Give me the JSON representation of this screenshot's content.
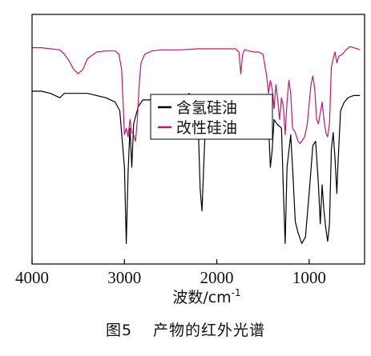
{
  "chart_data": {
    "type": "line",
    "xlabel": "波数/cm",
    "xlabel_sup": "-1",
    "xlim": [
      4000,
      400
    ],
    "xticks": [
      4000,
      3000,
      2000,
      1000
    ],
    "ylabel": "",
    "grid": false,
    "legend_placement": "center",
    "series": [
      {
        "name": "含氢硅油",
        "color": "#000000",
        "points": [
          [
            4000,
            0.75
          ],
          [
            3900,
            0.75
          ],
          [
            3800,
            0.74
          ],
          [
            3700,
            0.72
          ],
          [
            3650,
            0.74
          ],
          [
            3550,
            0.74
          ],
          [
            3400,
            0.74
          ],
          [
            3200,
            0.72
          ],
          [
            3100,
            0.7
          ],
          [
            3050,
            0.66
          ],
          [
            3000,
            0.4
          ],
          [
            2980,
            0.05
          ],
          [
            2960,
            0.38
          ],
          [
            2940,
            0.58
          ],
          [
            2920,
            0.4
          ],
          [
            2900,
            0.6
          ],
          [
            2850,
            0.68
          ],
          [
            2800,
            0.71
          ],
          [
            2700,
            0.71
          ],
          [
            2600,
            0.7
          ],
          [
            2500,
            0.72
          ],
          [
            2400,
            0.73
          ],
          [
            2350,
            0.7
          ],
          [
            2300,
            0.74
          ],
          [
            2250,
            0.7
          ],
          [
            2200,
            0.58
          ],
          [
            2180,
            0.3
          ],
          [
            2160,
            0.2
          ],
          [
            2140,
            0.42
          ],
          [
            2120,
            0.64
          ],
          [
            2100,
            0.7
          ],
          [
            2000,
            0.72
          ],
          [
            1900,
            0.73
          ],
          [
            1800,
            0.72
          ],
          [
            1700,
            0.72
          ],
          [
            1600,
            0.71
          ],
          [
            1500,
            0.71
          ],
          [
            1450,
            0.7
          ],
          [
            1420,
            0.4
          ],
          [
            1400,
            0.48
          ],
          [
            1380,
            0.62
          ],
          [
            1350,
            0.6
          ],
          [
            1300,
            0.58
          ],
          [
            1280,
            0.3
          ],
          [
            1260,
            0.05
          ],
          [
            1240,
            0.4
          ],
          [
            1200,
            0.55
          ],
          [
            1180,
            0.4
          ],
          [
            1150,
            0.15
          ],
          [
            1120,
            0.1
          ],
          [
            1080,
            0.05
          ],
          [
            1040,
            0.08
          ],
          [
            1000,
            0.28
          ],
          [
            960,
            0.5
          ],
          [
            930,
            0.52
          ],
          [
            900,
            0.32
          ],
          [
            880,
            0.14
          ],
          [
            860,
            0.32
          ],
          [
            840,
            0.2
          ],
          [
            820,
            0.12
          ],
          [
            800,
            0.06
          ],
          [
            780,
            0.14
          ],
          [
            760,
            0.48
          ],
          [
            740,
            0.56
          ],
          [
            720,
            0.44
          ],
          [
            700,
            0.28
          ],
          [
            690,
            0.4
          ],
          [
            660,
            0.66
          ],
          [
            620,
            0.7
          ],
          [
            580,
            0.72
          ],
          [
            520,
            0.73
          ],
          [
            450,
            0.73
          ]
        ]
      },
      {
        "name": "改性硅油",
        "color": "#c41474",
        "points": [
          [
            4000,
            0.95
          ],
          [
            3900,
            0.95
          ],
          [
            3800,
            0.945
          ],
          [
            3700,
            0.94
          ],
          [
            3650,
            0.92
          ],
          [
            3600,
            0.89
          ],
          [
            3550,
            0.85
          ],
          [
            3500,
            0.83
          ],
          [
            3450,
            0.85
          ],
          [
            3400,
            0.9
          ],
          [
            3300,
            0.93
          ],
          [
            3200,
            0.935
          ],
          [
            3100,
            0.935
          ],
          [
            3060,
            0.92
          ],
          [
            3030,
            0.85
          ],
          [
            3000,
            0.55
          ],
          [
            2980,
            0.58
          ],
          [
            2960,
            0.54
          ],
          [
            2940,
            0.62
          ],
          [
            2920,
            0.56
          ],
          [
            2900,
            0.55
          ],
          [
            2880,
            0.52
          ],
          [
            2860,
            0.62
          ],
          [
            2840,
            0.78
          ],
          [
            2820,
            0.88
          ],
          [
            2780,
            0.92
          ],
          [
            2700,
            0.935
          ],
          [
            2600,
            0.94
          ],
          [
            2400,
            0.94
          ],
          [
            2200,
            0.945
          ],
          [
            2000,
            0.945
          ],
          [
            1800,
            0.945
          ],
          [
            1760,
            0.93
          ],
          [
            1740,
            0.83
          ],
          [
            1720,
            0.92
          ],
          [
            1700,
            0.94
          ],
          [
            1650,
            0.935
          ],
          [
            1600,
            0.93
          ],
          [
            1550,
            0.93
          ],
          [
            1500,
            0.92
          ],
          [
            1460,
            0.82
          ],
          [
            1440,
            0.74
          ],
          [
            1420,
            0.8
          ],
          [
            1400,
            0.76
          ],
          [
            1380,
            0.67
          ],
          [
            1360,
            0.78
          ],
          [
            1340,
            0.71
          ],
          [
            1320,
            0.62
          ],
          [
            1300,
            0.72
          ],
          [
            1280,
            0.68
          ],
          [
            1260,
            0.55
          ],
          [
            1240,
            0.7
          ],
          [
            1220,
            0.8
          ],
          [
            1200,
            0.74
          ],
          [
            1180,
            0.58
          ],
          [
            1150,
            0.56
          ],
          [
            1120,
            0.52
          ],
          [
            1100,
            0.51
          ],
          [
            1080,
            0.52
          ],
          [
            1050,
            0.54
          ],
          [
            1020,
            0.6
          ],
          [
            980,
            0.78
          ],
          [
            960,
            0.82
          ],
          [
            940,
            0.76
          ],
          [
            920,
            0.62
          ],
          [
            900,
            0.6
          ],
          [
            880,
            0.65
          ],
          [
            860,
            0.7
          ],
          [
            840,
            0.62
          ],
          [
            820,
            0.56
          ],
          [
            800,
            0.54
          ],
          [
            780,
            0.6
          ],
          [
            760,
            0.86
          ],
          [
            740,
            0.9
          ],
          [
            720,
            0.93
          ],
          [
            700,
            0.88
          ],
          [
            680,
            0.91
          ],
          [
            640,
            0.92
          ],
          [
            600,
            0.94
          ],
          [
            560,
            0.955
          ],
          [
            520,
            0.95
          ],
          [
            480,
            0.945
          ],
          [
            450,
            0.94
          ]
        ]
      }
    ]
  },
  "caption": {
    "figure_no": "图5",
    "text": "产物的红外光谱"
  }
}
